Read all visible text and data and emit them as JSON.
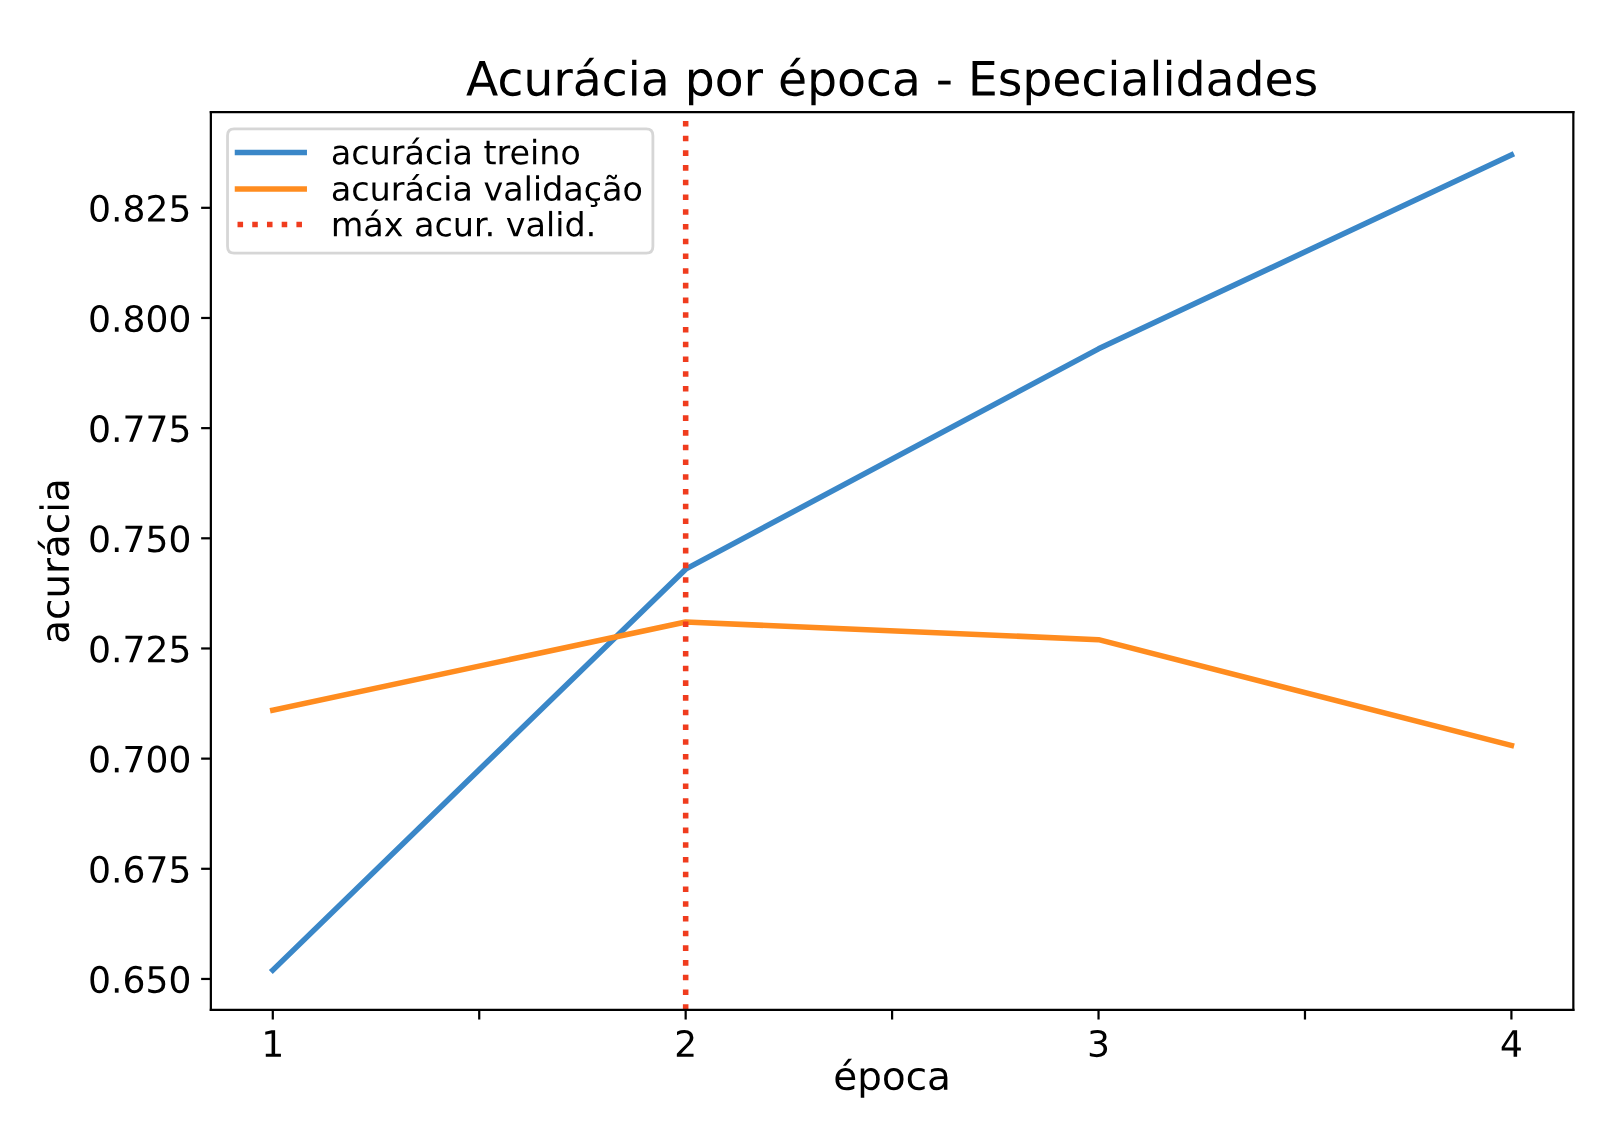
{
  "chart_data": {
    "type": "line",
    "title": "Acurácia por época - Especialidades",
    "xlabel": "época",
    "ylabel": "acurácia",
    "x": [
      1,
      2,
      3,
      4
    ],
    "series": [
      {
        "name": "acurácia treino",
        "color": "#3a87c8",
        "values": [
          0.652,
          0.743,
          0.793,
          0.837
        ]
      },
      {
        "name": "acurácia validação",
        "color": "#ff8c1f",
        "values": [
          0.711,
          0.731,
          0.727,
          0.703
        ]
      }
    ],
    "ref_lines": [
      {
        "axis": "x",
        "value": 2,
        "label": "máx acur. valid.",
        "color": "#f03c1e",
        "line_style": "dotted"
      }
    ],
    "xlim": [
      0.85,
      4.15
    ],
    "xticks": [
      1,
      {
        "value": 1.5,
        "label": null
      },
      2,
      {
        "value": 2.5,
        "label": null
      },
      3,
      {
        "value": 3.5,
        "label": null
      },
      4
    ],
    "ylim": [
      0.643,
      0.8467
    ],
    "yticks": [
      {
        "value": 0.65,
        "label": "0.650"
      },
      0.675,
      {
        "value": 0.7,
        "label": "0.700"
      },
      0.725,
      {
        "value": 0.75,
        "label": "0.750"
      },
      0.775,
      {
        "value": 0.8,
        "label": "0.800"
      },
      0.825
    ],
    "grid": false,
    "legend": "top left",
    "marker": "none",
    "line_style": "solid"
  }
}
